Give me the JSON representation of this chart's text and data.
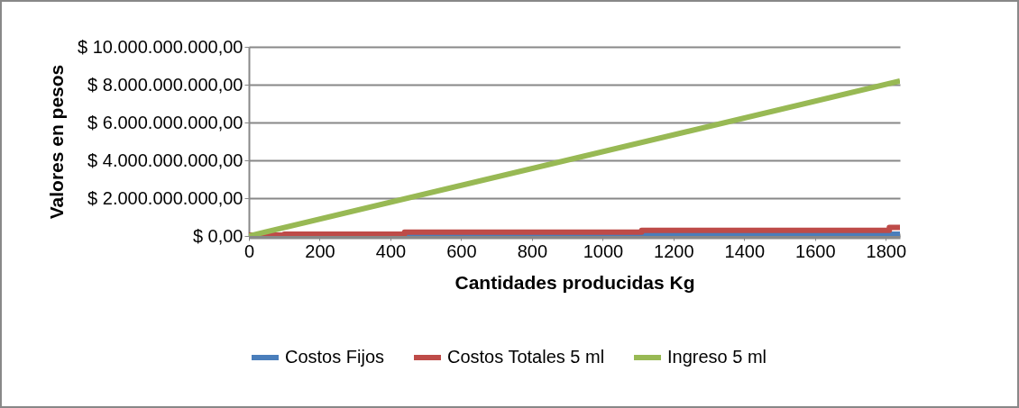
{
  "chart_data": {
    "type": "line",
    "xlabel": "Cantidades producidas Kg",
    "ylabel": "Valores en pesos",
    "xlim": [
      0,
      1840
    ],
    "xticks": [
      0,
      200,
      400,
      600,
      800,
      1000,
      1200,
      1400,
      1600,
      1800
    ],
    "ylim": [
      0,
      10000000000
    ],
    "yticks": [
      {
        "value": 0,
        "label": "$ 0,00"
      },
      {
        "value": 2000000000,
        "label": "$ 2.000.000.000,00"
      },
      {
        "value": 4000000000,
        "label": "$ 4.000.000.000,00"
      },
      {
        "value": 6000000000,
        "label": "$ 6.000.000.000,00"
      },
      {
        "value": 8000000000,
        "label": "$ 8.000.000.000,00"
      },
      {
        "value": 10000000000,
        "label": "$ 10.000.000.000,00"
      }
    ],
    "grid": "y",
    "legend": "bottom",
    "series": [
      {
        "name": "Costos Fijos",
        "type": "step",
        "color": "#4a7ebb",
        "x": [
          0,
          440,
          1110,
          1840
        ],
        "values": [
          20000000,
          50000000,
          100000000,
          100000000
        ]
      },
      {
        "name": "Costos Totales 5 ml",
        "type": "step",
        "color": "#be4b48",
        "x": [
          0,
          100,
          440,
          1110,
          1810,
          1840
        ],
        "values": [
          50000000,
          100000000,
          200000000,
          300000000,
          450000000,
          450000000
        ]
      },
      {
        "name": "Ingreso 5 ml",
        "color": "#98b954",
        "x": [
          0,
          1840
        ],
        "values": [
          0,
          8200000000
        ]
      }
    ]
  }
}
